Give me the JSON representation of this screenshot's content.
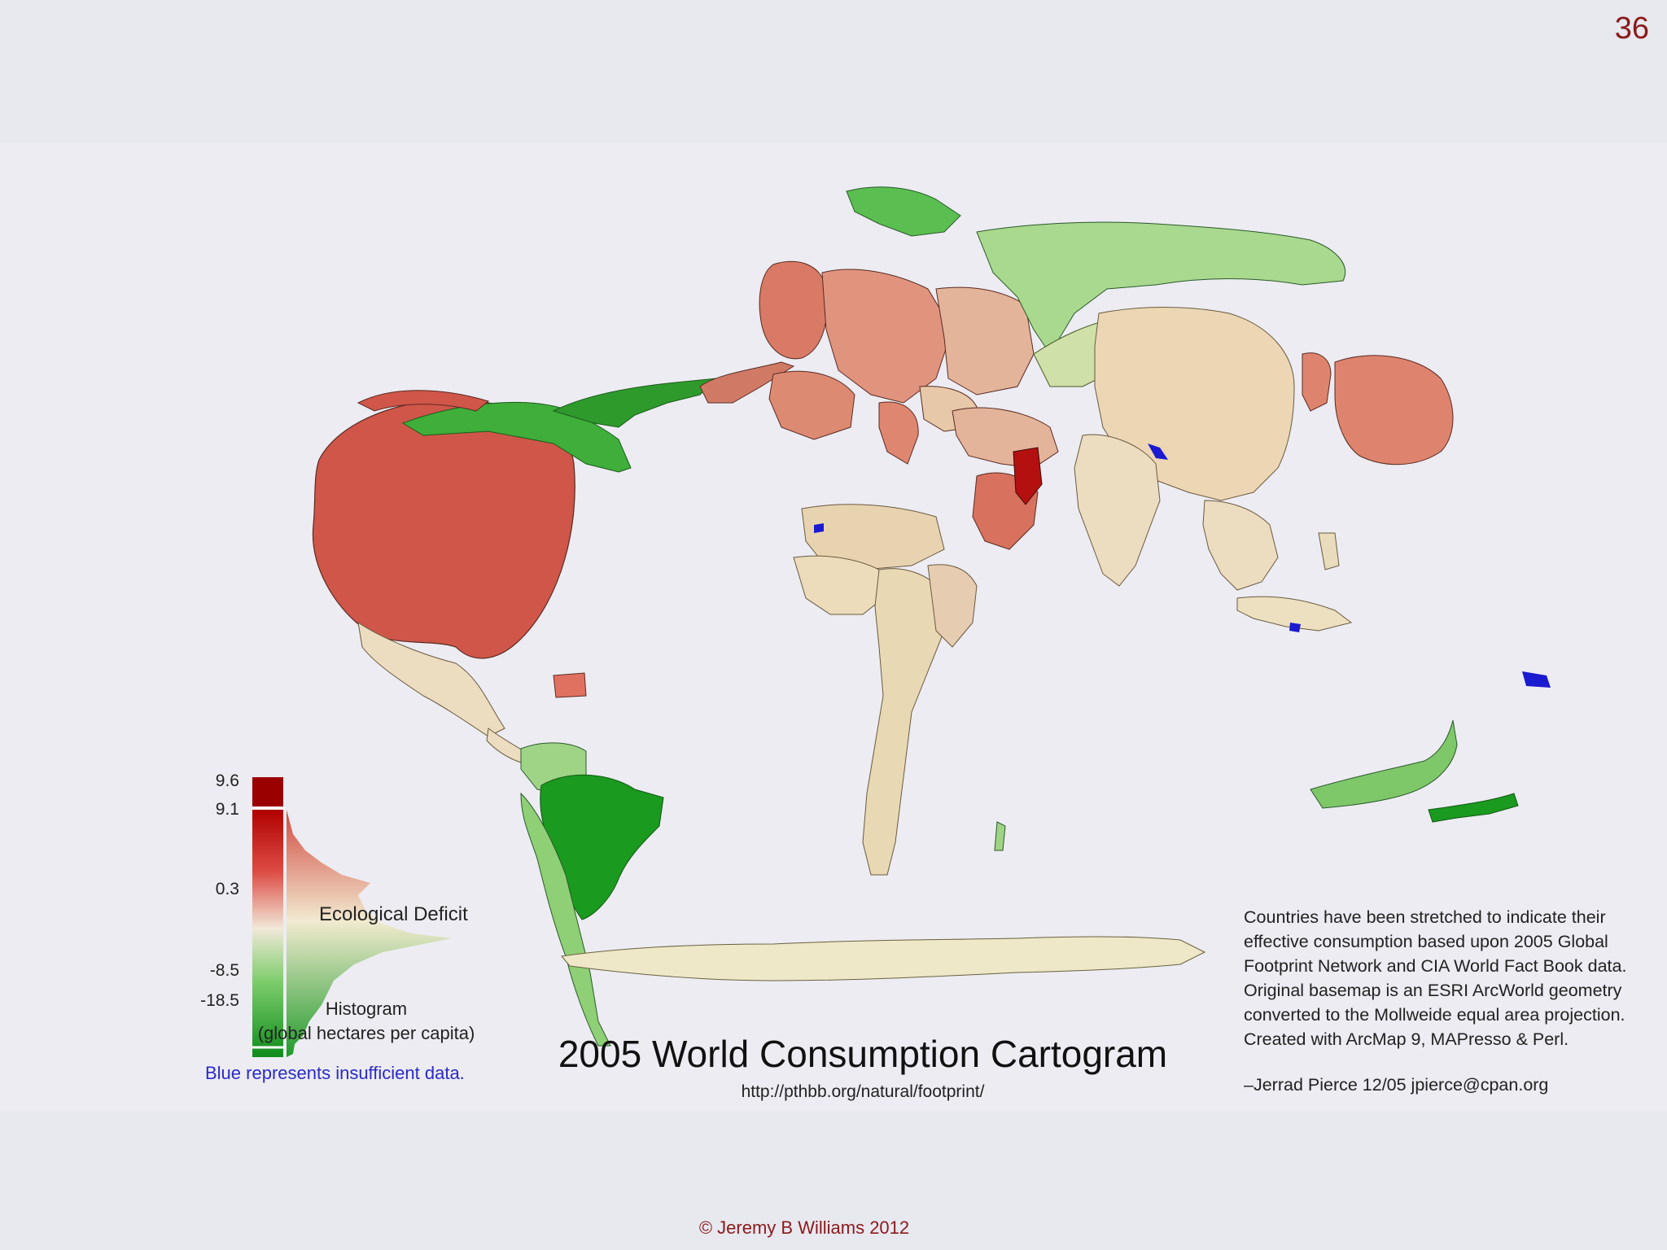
{
  "slide_number": "36",
  "map": {
    "title": "2005 World Consumption Cartogram",
    "url": "http://pthbb.org/natural/footprint/",
    "description_lines": [
      "Countries have been stretched to indicate their",
      "effective consumption based upon 2005 Global",
      "Footprint Network and CIA World Fact Book data.",
      "Original basemap is an ESRI ArcWorld geometry",
      "converted to the Mollweide equal area projection.",
      "Created with ArcMap 9, MAPresso & Perl."
    ],
    "credit": "–Jerrad Pierce 12/05 jpierce@cpan.org"
  },
  "legend": {
    "title": "Ecological Deficit",
    "ticks": [
      "9.6",
      "9.1",
      "0.3",
      "-8.5",
      "-18.5"
    ],
    "histogram_label": "Histogram",
    "units_label": "(global hectares per capita)",
    "insufficient_note": "Blue represents insufficient data.",
    "colors": {
      "deficit_max": "#9b0000",
      "deficit": "#d0564a",
      "neutral": "#ece0c0",
      "reserve": "#2ea02e",
      "reserve_max": "#0b8a1a",
      "insufficient": "#1a1ad0"
    }
  },
  "footer": {
    "copyright": "© Jeremy B Williams 2012"
  }
}
